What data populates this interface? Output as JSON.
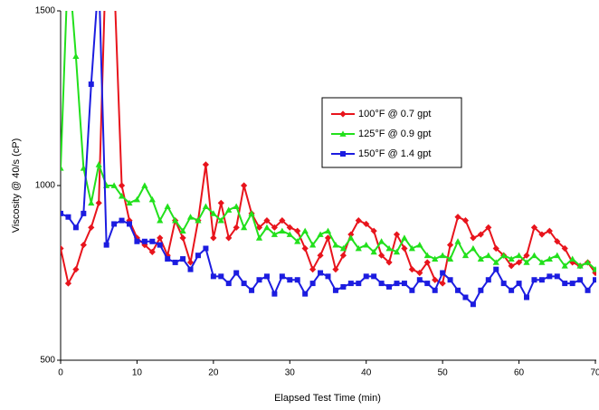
{
  "chart_data": {
    "type": "line",
    "x_label": "Elapsed Test Time (min)",
    "y_label": "Viscosity @ 40/s (cP)",
    "x": [
      0,
      1,
      2,
      3,
      4,
      5,
      6,
      7,
      8,
      9,
      10,
      11,
      12,
      13,
      14,
      15,
      16,
      17,
      18,
      19,
      20,
      21,
      22,
      23,
      24,
      25,
      26,
      27,
      28,
      29,
      30,
      31,
      32,
      33,
      34,
      35,
      36,
      37,
      38,
      39,
      40,
      41,
      42,
      43,
      44,
      45,
      46,
      47,
      48,
      49,
      50,
      51,
      52,
      53,
      54,
      55,
      56,
      57,
      58,
      59,
      60,
      61,
      62,
      63,
      64,
      65,
      66,
      67,
      68,
      69,
      70
    ],
    "series": [
      {
        "name": "100°F @ 0.7 gpt",
        "color": "#e8141c",
        "marker": "diamond",
        "values": [
          820,
          720,
          760,
          830,
          880,
          950,
          1700,
          1600,
          1000,
          900,
          850,
          830,
          810,
          850,
          800,
          900,
          850,
          780,
          900,
          1060,
          850,
          950,
          850,
          880,
          1000,
          920,
          880,
          900,
          880,
          900,
          880,
          870,
          820,
          760,
          800,
          850,
          760,
          800,
          860,
          900,
          890,
          870,
          800,
          780,
          860,
          820,
          760,
          750,
          780,
          730,
          720,
          830,
          910,
          900,
          850,
          860,
          880,
          820,
          800,
          770,
          780,
          800,
          880,
          860,
          870,
          840,
          820,
          780,
          770,
          780,
          750
        ]
      },
      {
        "name": "125°F @ 0.9 gpt",
        "color": "#22e01c",
        "marker": "triangle",
        "values": [
          1050,
          1650,
          1370,
          1050,
          950,
          1060,
          1000,
          1000,
          970,
          950,
          960,
          1000,
          960,
          900,
          940,
          900,
          870,
          910,
          900,
          940,
          920,
          900,
          930,
          940,
          880,
          920,
          850,
          880,
          860,
          870,
          860,
          840,
          870,
          830,
          860,
          870,
          830,
          820,
          850,
          820,
          830,
          810,
          840,
          820,
          810,
          850,
          820,
          830,
          800,
          790,
          800,
          790,
          840,
          800,
          820,
          790,
          800,
          780,
          800,
          790,
          800,
          780,
          800,
          780,
          790,
          800,
          770,
          790,
          770,
          780,
          760
        ]
      },
      {
        "name": "150°F @ 1.4 gpt",
        "color": "#1c1ce0",
        "marker": "square",
        "values": [
          920,
          910,
          880,
          920,
          1290,
          1600,
          830,
          890,
          900,
          890,
          840,
          840,
          840,
          830,
          790,
          780,
          790,
          760,
          800,
          820,
          740,
          740,
          720,
          750,
          720,
          700,
          730,
          740,
          690,
          740,
          730,
          730,
          690,
          720,
          750,
          740,
          700,
          710,
          720,
          720,
          740,
          740,
          720,
          710,
          720,
          720,
          700,
          730,
          720,
          700,
          750,
          730,
          700,
          680,
          660,
          700,
          730,
          760,
          720,
          700,
          720,
          680,
          730,
          730,
          740,
          740,
          720,
          720,
          730,
          700,
          730
        ]
      }
    ],
    "xlim": [
      0,
      70
    ],
    "xticks": [
      0,
      10,
      20,
      30,
      40,
      50,
      60,
      70
    ],
    "ylim": [
      500,
      1500
    ],
    "yticks": [
      500,
      1000,
      1500
    ]
  }
}
